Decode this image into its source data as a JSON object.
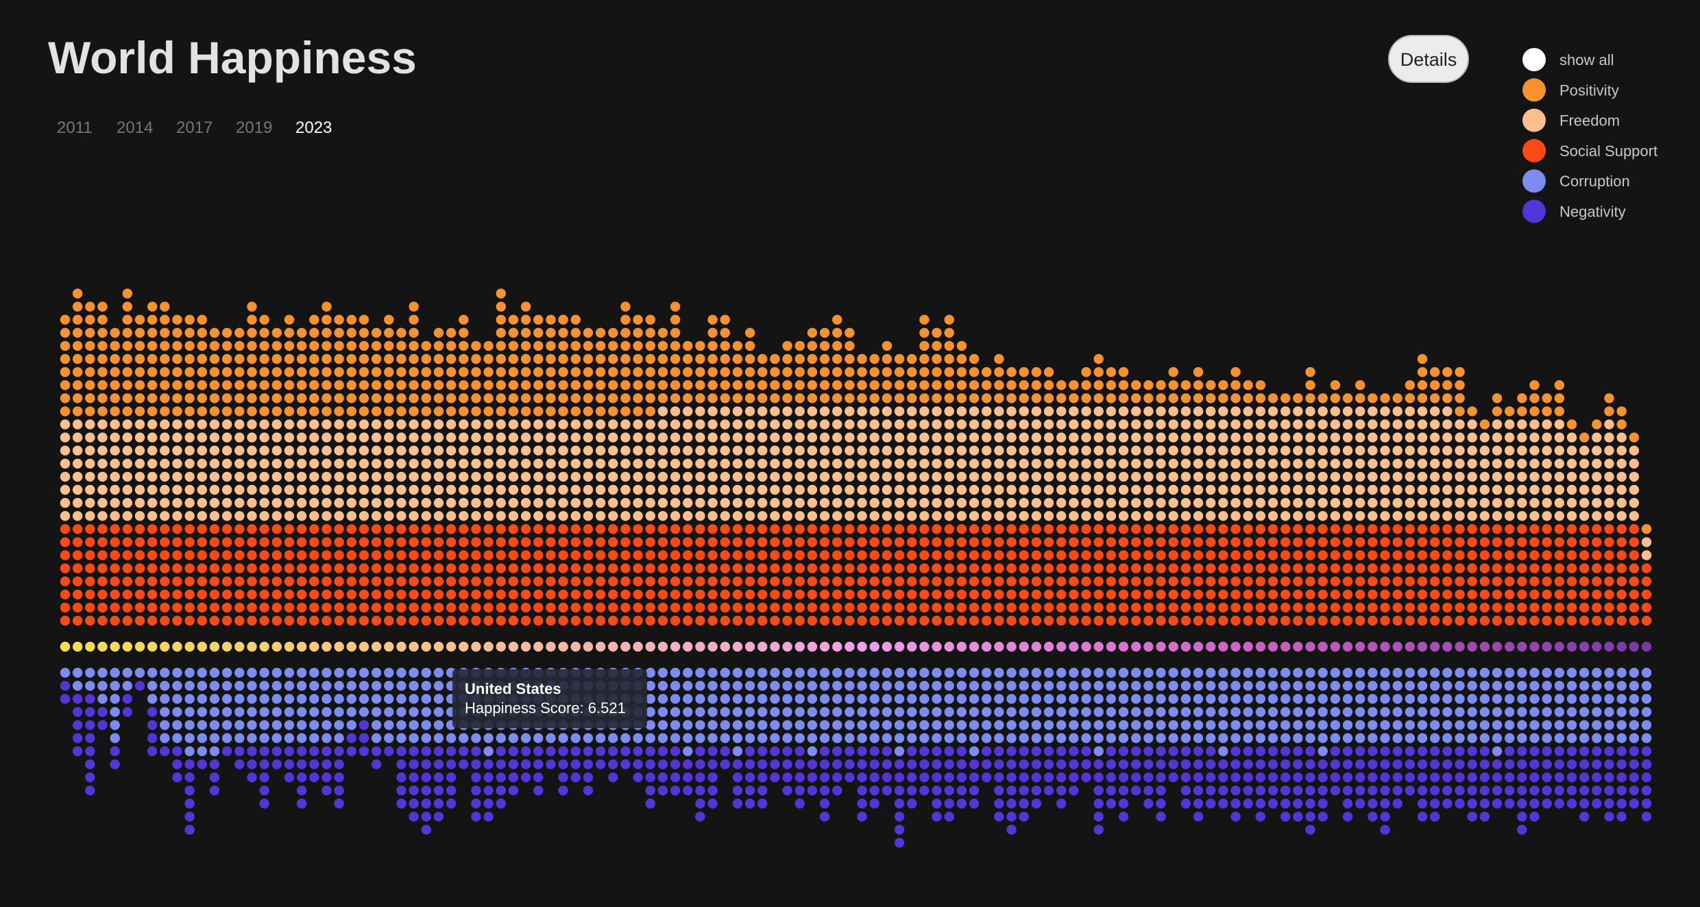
{
  "header": {
    "title": "World Happiness",
    "years": [
      "2011",
      "2014",
      "2017",
      "2019",
      "2023"
    ],
    "active_year": "2023",
    "button": "Details"
  },
  "legend": {
    "show_all": "show all"
  },
  "tooltip": {
    "title": "United States",
    "text": "Happiness Score: 6.521"
  },
  "chart_data": {
    "type": "dot-stack",
    "score_colors": [
      "#f7df4a",
      "#fcc08f",
      "#f0a0e6",
      "#d060c4",
      "#7a3aa6"
    ],
    "series": [
      {
        "name": "Positivity",
        "color": "#f7922e",
        "values": [
          8,
          10,
          9,
          9,
          7,
          10,
          8,
          9,
          9,
          8,
          8,
          8,
          7,
          7,
          7,
          9,
          8,
          7,
          8,
          7,
          8,
          9,
          8,
          8,
          8,
          7,
          8,
          7,
          9,
          6,
          7,
          7,
          8,
          6,
          6,
          10,
          8,
          9,
          8,
          8,
          8,
          8,
          7,
          7,
          7,
          9,
          8,
          8,
          6,
          8,
          5,
          5,
          7,
          7,
          5,
          6,
          4,
          4,
          5,
          5,
          6,
          6,
          7,
          6,
          4,
          4,
          5,
          4,
          4,
          7,
          6,
          7,
          5,
          4,
          3,
          4,
          3,
          3,
          3,
          3,
          2,
          2,
          3,
          4,
          3,
          3,
          2,
          2,
          2,
          3,
          2,
          3,
          2,
          2,
          3,
          2,
          2,
          1,
          1,
          1,
          3,
          1,
          2,
          1,
          2,
          1,
          1,
          1,
          2,
          4,
          3,
          3,
          4,
          1,
          1,
          2,
          1,
          2,
          3,
          2,
          3,
          1,
          1,
          1,
          2,
          2,
          1,
          1
        ]
      },
      {
        "name": "Freedom",
        "color": "#fcc08f",
        "values": [
          8,
          8,
          8,
          8,
          8,
          8,
          8,
          8,
          8,
          8,
          8,
          8,
          8,
          8,
          8,
          8,
          8,
          8,
          8,
          8,
          8,
          8,
          8,
          8,
          8,
          8,
          8,
          8,
          8,
          8,
          8,
          8,
          8,
          8,
          8,
          8,
          8,
          8,
          8,
          8,
          8,
          8,
          8,
          8,
          8,
          8,
          8,
          8,
          9,
          9,
          9,
          9,
          9,
          9,
          9,
          9,
          9,
          9,
          9,
          9,
          9,
          9,
          9,
          9,
          9,
          9,
          9,
          9,
          9,
          9,
          9,
          9,
          9,
          9,
          9,
          9,
          9,
          9,
          9,
          9,
          9,
          9,
          9,
          9,
          9,
          9,
          9,
          9,
          9,
          9,
          9,
          9,
          9,
          9,
          9,
          9,
          9,
          9,
          9,
          9,
          9,
          9,
          9,
          9,
          9,
          9,
          9,
          9,
          9,
          9,
          9,
          9,
          8,
          8,
          7,
          8,
          8,
          8,
          8,
          8,
          8,
          7,
          6,
          7,
          8,
          7,
          6,
          2
        ]
      },
      {
        "name": "Social Support",
        "color": "#fc4a14",
        "values": [
          8,
          8,
          8,
          8,
          8,
          8,
          8,
          8,
          8,
          8,
          8,
          8,
          8,
          8,
          8,
          8,
          8,
          8,
          8,
          8,
          8,
          8,
          8,
          8,
          8,
          8,
          8,
          8,
          8,
          8,
          8,
          8,
          8,
          8,
          8,
          8,
          8,
          8,
          8,
          8,
          8,
          8,
          8,
          8,
          8,
          8,
          8,
          8,
          8,
          8,
          8,
          8,
          8,
          8,
          8,
          8,
          8,
          8,
          8,
          8,
          8,
          8,
          8,
          8,
          8,
          8,
          8,
          8,
          8,
          8,
          8,
          8,
          8,
          8,
          8,
          8,
          8,
          8,
          8,
          8,
          8,
          8,
          8,
          8,
          8,
          8,
          8,
          8,
          8,
          8,
          8,
          8,
          8,
          8,
          8,
          8,
          8,
          8,
          8,
          8,
          8,
          8,
          8,
          8,
          8,
          8,
          8,
          8,
          8,
          8,
          8,
          8,
          8,
          8,
          8,
          8,
          8,
          8,
          8,
          8,
          8,
          8,
          8,
          8,
          8,
          8,
          8,
          5
        ]
      },
      {
        "name": "Corruption",
        "color": "#7d8cf0",
        "values": [
          1,
          2,
          2,
          3,
          6,
          2,
          1,
          3,
          6,
          6,
          7,
          7,
          7,
          6,
          6,
          6,
          6,
          6,
          6,
          6,
          6,
          6,
          6,
          5,
          4,
          6,
          6,
          6,
          6,
          6,
          6,
          6,
          6,
          6,
          7,
          6,
          6,
          6,
          6,
          6,
          6,
          6,
          6,
          6,
          6,
          6,
          6,
          6,
          6,
          6,
          7,
          6,
          6,
          6,
          7,
          6,
          6,
          6,
          6,
          6,
          7,
          6,
          6,
          6,
          6,
          6,
          6,
          7,
          6,
          6,
          6,
          6,
          6,
          7,
          6,
          6,
          6,
          6,
          6,
          6,
          6,
          6,
          6,
          7,
          6,
          6,
          6,
          6,
          6,
          6,
          6,
          6,
          6,
          7,
          6,
          6,
          6,
          6,
          6,
          6,
          6,
          7,
          6,
          6,
          6,
          6,
          6,
          6,
          6,
          6,
          6,
          6,
          6,
          6,
          6,
          7,
          6,
          6,
          6,
          6,
          6,
          6,
          6,
          6,
          6,
          6,
          6,
          6
        ]
      },
      {
        "name": "Negativity",
        "color": "#5236d8",
        "values": [
          2,
          5,
          8,
          2,
          2,
          2,
          1,
          4,
          1,
          3,
          6,
          1,
          3,
          1,
          2,
          3,
          5,
          2,
          3,
          5,
          3,
          4,
          5,
          2,
          3,
          2,
          1,
          5,
          6,
          7,
          6,
          5,
          2,
          6,
          5,
          5,
          4,
          3,
          4,
          2,
          4,
          3,
          4,
          2,
          3,
          2,
          3,
          5,
          4,
          4,
          3,
          6,
          5,
          2,
          4,
          5,
          5,
          3,
          4,
          5,
          3,
          6,
          4,
          3,
          6,
          5,
          4,
          7,
          5,
          4,
          6,
          6,
          5,
          4,
          3,
          6,
          7,
          6,
          5,
          4,
          5,
          4,
          3,
          6,
          5,
          6,
          4,
          5,
          6,
          3,
          5,
          6,
          5,
          4,
          6,
          5,
          6,
          5,
          6,
          6,
          7,
          5,
          4,
          6,
          5,
          6,
          7,
          5,
          4,
          6,
          6,
          5,
          5,
          6,
          6,
          4,
          5,
          7,
          6,
          5,
          5,
          5,
          6,
          5,
          6,
          6,
          5,
          6
        ]
      }
    ]
  }
}
